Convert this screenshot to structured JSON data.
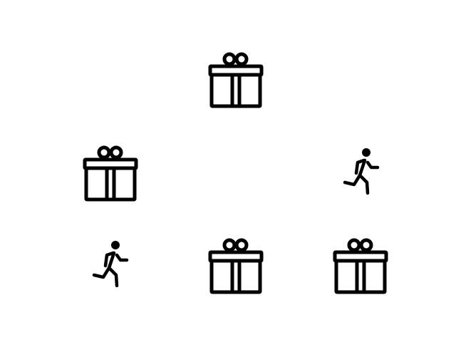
{
  "scene": {
    "background": "#ffffff",
    "icon_color": "#000000",
    "icons": [
      {
        "name": "gift-icon",
        "count": 4
      },
      {
        "name": "running-person-icon",
        "count": 2
      }
    ]
  }
}
